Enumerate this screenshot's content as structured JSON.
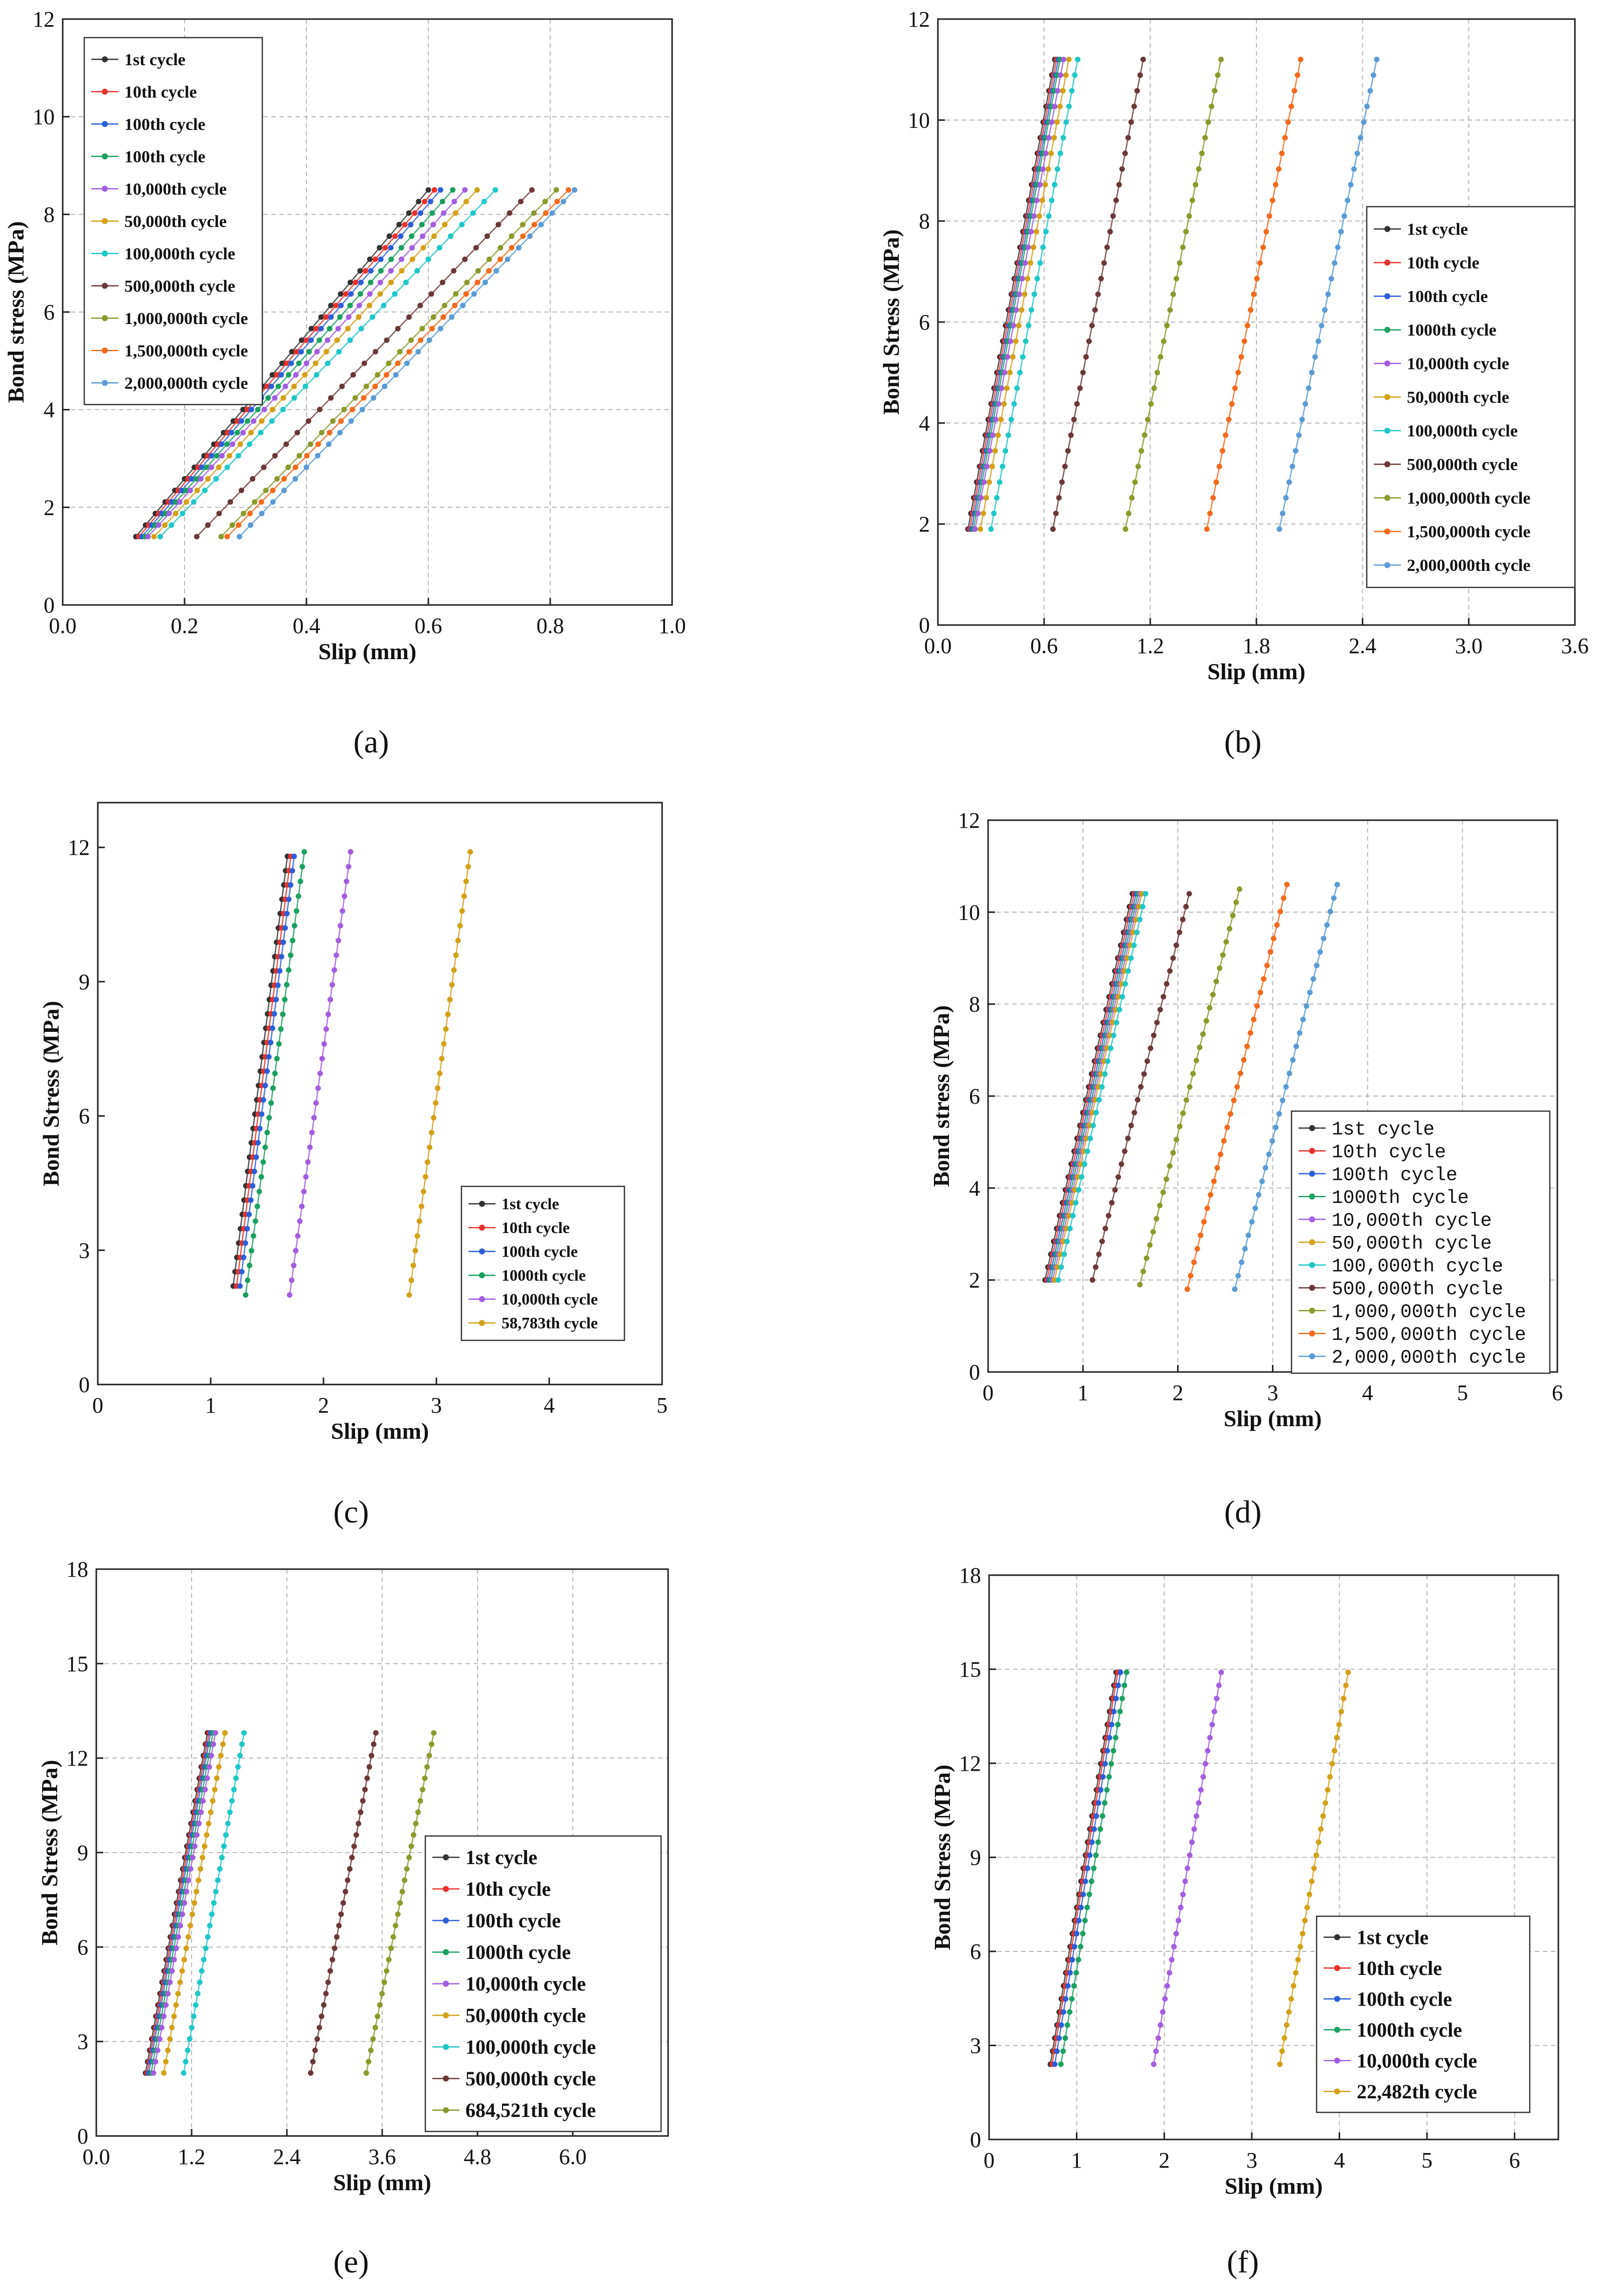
{
  "figure": {
    "panel_labels": [
      "(a)",
      "(b)",
      "(c)",
      "(d)",
      "(e)",
      "(f)"
    ]
  },
  "chart_data": [
    {
      "id": "a",
      "type": "line",
      "panel_label": "(a)",
      "xlabel": "Slip (mm)",
      "ylabel": "Bond stress (MPa)",
      "xlim": [
        0,
        1.0
      ],
      "ylim": [
        0,
        12
      ],
      "xticks": [
        "0.0",
        "0.2",
        "0.4",
        "0.6",
        "0.8",
        "1.0"
      ],
      "yticks": [
        "0",
        "2",
        "4",
        "6",
        "8",
        "10",
        "12"
      ],
      "grid": true,
      "legend_position": "top-left",
      "series": [
        {
          "name": "1st cycle",
          "color": "#333333",
          "x": [
            0.12,
            0.6
          ],
          "y": [
            1.4,
            8.5
          ]
        },
        {
          "name": "10th cycle",
          "color": "#e8312a",
          "x": [
            0.125,
            0.61
          ],
          "y": [
            1.4,
            8.5
          ]
        },
        {
          "name": "100th cycle",
          "color": "#2b5fd9",
          "x": [
            0.13,
            0.62
          ],
          "y": [
            1.4,
            8.5
          ]
        },
        {
          "name": "100th cycle",
          "color": "#1aa060",
          "x": [
            0.135,
            0.64
          ],
          "y": [
            1.4,
            8.5
          ]
        },
        {
          "name": "10,000th cycle",
          "color": "#a25de0",
          "x": [
            0.14,
            0.66
          ],
          "y": [
            1.4,
            8.5
          ]
        },
        {
          "name": "50,000th cycle",
          "color": "#d4a017",
          "x": [
            0.15,
            0.68
          ],
          "y": [
            1.4,
            8.5
          ]
        },
        {
          "name": "100,000th cycle",
          "color": "#1fc7c7",
          "x": [
            0.16,
            0.71
          ],
          "y": [
            1.4,
            8.5
          ]
        },
        {
          "name": "500,000th cycle",
          "color": "#6b3838",
          "x": [
            0.22,
            0.77
          ],
          "y": [
            1.4,
            8.5
          ]
        },
        {
          "name": "1,000,000th cycle",
          "color": "#8b9a2a",
          "x": [
            0.26,
            0.81
          ],
          "y": [
            1.4,
            8.5
          ]
        },
        {
          "name": "1,500,000th cycle",
          "color": "#f26a1b",
          "x": [
            0.27,
            0.83
          ],
          "y": [
            1.4,
            8.5
          ]
        },
        {
          "name": "2,000,000th cycle",
          "color": "#5b9bd5",
          "x": [
            0.29,
            0.84
          ],
          "y": [
            1.4,
            8.5
          ]
        }
      ]
    },
    {
      "id": "b",
      "type": "line",
      "panel_label": "(b)",
      "xlabel": "Slip (mm)",
      "ylabel": "Bond Stress (MPa)",
      "xlim": [
        0,
        3.6
      ],
      "ylim": [
        0,
        12
      ],
      "xticks": [
        "0.0",
        "0.6",
        "1.2",
        "1.8",
        "2.4",
        "3.0",
        "3.6"
      ],
      "yticks": [
        "0",
        "2",
        "4",
        "6",
        "8",
        "10",
        "12"
      ],
      "grid": true,
      "legend_position": "middle-right",
      "series": [
        {
          "name": "1st cycle",
          "color": "#333333",
          "x": [
            0.17,
            0.66
          ],
          "y": [
            1.9,
            11.2
          ]
        },
        {
          "name": "10th cycle",
          "color": "#e8312a",
          "x": [
            0.18,
            0.67
          ],
          "y": [
            1.9,
            11.2
          ]
        },
        {
          "name": "100th cycle",
          "color": "#2b5fd9",
          "x": [
            0.19,
            0.68
          ],
          "y": [
            1.9,
            11.2
          ]
        },
        {
          "name": "1000th cycle",
          "color": "#1aa060",
          "x": [
            0.2,
            0.69
          ],
          "y": [
            1.9,
            11.2
          ]
        },
        {
          "name": "10,000th cycle",
          "color": "#a25de0",
          "x": [
            0.21,
            0.71
          ],
          "y": [
            1.9,
            11.2
          ]
        },
        {
          "name": "50,000th cycle",
          "color": "#d4a017",
          "x": [
            0.24,
            0.74
          ],
          "y": [
            1.9,
            11.2
          ]
        },
        {
          "name": "100,000th cycle",
          "color": "#1fc7c7",
          "x": [
            0.3,
            0.79
          ],
          "y": [
            1.9,
            11.2
          ]
        },
        {
          "name": "500,000th cycle",
          "color": "#6b3838",
          "x": [
            0.65,
            1.16
          ],
          "y": [
            1.9,
            11.2
          ]
        },
        {
          "name": "1,000,000th cycle",
          "color": "#8b9a2a",
          "x": [
            1.06,
            1.6
          ],
          "y": [
            1.9,
            11.2
          ]
        },
        {
          "name": "1,500,000th cycle",
          "color": "#f26a1b",
          "x": [
            1.52,
            2.05
          ],
          "y": [
            1.9,
            11.2
          ]
        },
        {
          "name": "2,000,000th cycle",
          "color": "#5b9bd5",
          "x": [
            1.93,
            2.48
          ],
          "y": [
            1.9,
            11.2
          ]
        }
      ]
    },
    {
      "id": "c",
      "type": "line",
      "panel_label": "(c)",
      "xlabel": "Slip (mm)",
      "ylabel": "Bond Stress (MPa)",
      "xlim": [
        0,
        5
      ],
      "ylim": [
        0,
        13
      ],
      "xticks": [
        "0",
        "1",
        "2",
        "3",
        "4",
        "5"
      ],
      "yticks": [
        "0",
        "3",
        "6",
        "9",
        "12"
      ],
      "ytick_values": [
        0,
        3,
        6,
        9,
        12
      ],
      "grid": false,
      "legend_position": "bottom-right",
      "series": [
        {
          "name": "1st cycle",
          "color": "#333333",
          "x": [
            1.2,
            1.68
          ],
          "y": [
            2.2,
            11.8
          ]
        },
        {
          "name": "10th cycle",
          "color": "#e8312a",
          "x": [
            1.23,
            1.71
          ],
          "y": [
            2.2,
            11.8
          ]
        },
        {
          "name": "100th cycle",
          "color": "#2b5fd9",
          "x": [
            1.26,
            1.74
          ],
          "y": [
            2.2,
            11.8
          ]
        },
        {
          "name": "1000th cycle",
          "color": "#1aa060",
          "x": [
            1.31,
            1.83
          ],
          "y": [
            2.0,
            11.9
          ]
        },
        {
          "name": "10,000th cycle",
          "color": "#a25de0",
          "x": [
            1.7,
            2.24
          ],
          "y": [
            2.0,
            11.9
          ]
        },
        {
          "name": "58,783th cycle",
          "color": "#d4a017",
          "x": [
            2.76,
            3.3
          ],
          "y": [
            2.0,
            11.9
          ]
        }
      ]
    },
    {
      "id": "d",
      "type": "line",
      "panel_label": "(d)",
      "xlabel": "Slip (mm)",
      "ylabel": "Bond stress (MPa)",
      "xlim": [
        0,
        6
      ],
      "ylim": [
        0,
        12
      ],
      "xticks": [
        "0",
        "1",
        "2",
        "3",
        "4",
        "5",
        "6"
      ],
      "yticks": [
        "0",
        "2",
        "4",
        "6",
        "8",
        "10",
        "12"
      ],
      "grid": true,
      "legend_position": "bottom-right",
      "series": [
        {
          "name": "1st cycle",
          "color": "#333333",
          "x": [
            0.6,
            1.52
          ],
          "y": [
            2.0,
            10.4
          ]
        },
        {
          "name": "10th cycle",
          "color": "#e8312a",
          "x": [
            0.62,
            1.54
          ],
          "y": [
            2.0,
            10.4
          ]
        },
        {
          "name": "100th cycle",
          "color": "#2b5fd9",
          "x": [
            0.64,
            1.56
          ],
          "y": [
            2.0,
            10.4
          ]
        },
        {
          "name": "1000th cycle",
          "color": "#1aa060",
          "x": [
            0.66,
            1.58
          ],
          "y": [
            2.0,
            10.4
          ]
        },
        {
          "name": "10,000th cycle",
          "color": "#a25de0",
          "x": [
            0.68,
            1.6
          ],
          "y": [
            2.0,
            10.4
          ]
        },
        {
          "name": "50,000th cycle",
          "color": "#d4a017",
          "x": [
            0.7,
            1.62
          ],
          "y": [
            2.0,
            10.4
          ]
        },
        {
          "name": "100,000th cycle",
          "color": "#1fc7c7",
          "x": [
            0.74,
            1.66
          ],
          "y": [
            2.0,
            10.4
          ]
        },
        {
          "name": "500,000th cycle",
          "color": "#6b3838",
          "x": [
            1.1,
            2.12
          ],
          "y": [
            2.0,
            10.4
          ]
        },
        {
          "name": "1,000,000th cycle",
          "color": "#8b9a2a",
          "x": [
            1.6,
            2.65
          ],
          "y": [
            1.9,
            10.5
          ]
        },
        {
          "name": "1,500,000th cycle",
          "color": "#f26a1b",
          "x": [
            2.1,
            3.15
          ],
          "y": [
            1.8,
            10.6
          ]
        },
        {
          "name": "2,000,000th cycle",
          "color": "#5b9bd5",
          "x": [
            2.6,
            3.68
          ],
          "y": [
            1.8,
            10.6
          ]
        }
      ]
    },
    {
      "id": "e",
      "type": "line",
      "panel_label": "(e)",
      "xlabel": "Slip (mm)",
      "ylabel": "Bond Stress (MPa)",
      "xlim": [
        0,
        7.2
      ],
      "ylim": [
        0,
        18
      ],
      "xticks": [
        "0.0",
        "1.2",
        "2.4",
        "3.6",
        "4.8",
        "6.0"
      ],
      "xtick_values": [
        0,
        1.2,
        2.4,
        3.6,
        4.8,
        6.0
      ],
      "yticks": [
        "0",
        "3",
        "6",
        "9",
        "12",
        "15",
        "18"
      ],
      "grid": true,
      "legend_position": "bottom-right",
      "series": [
        {
          "name": "1st cycle",
          "color": "#333333",
          "x": [
            0.62,
            1.4
          ],
          "y": [
            2.0,
            12.8
          ]
        },
        {
          "name": "10th cycle",
          "color": "#e8312a",
          "x": [
            0.64,
            1.42
          ],
          "y": [
            2.0,
            12.8
          ]
        },
        {
          "name": "100th cycle",
          "color": "#2b5fd9",
          "x": [
            0.66,
            1.44
          ],
          "y": [
            2.0,
            12.8
          ]
        },
        {
          "name": "1000th cycle",
          "color": "#1aa060",
          "x": [
            0.69,
            1.47
          ],
          "y": [
            2.0,
            12.8
          ]
        },
        {
          "name": "10,000th cycle",
          "color": "#a25de0",
          "x": [
            0.72,
            1.5
          ],
          "y": [
            2.0,
            12.8
          ]
        },
        {
          "name": "50,000th cycle",
          "color": "#d4a017",
          "x": [
            0.85,
            1.62
          ],
          "y": [
            2.0,
            12.8
          ]
        },
        {
          "name": "100,000th cycle",
          "color": "#1fc7c7",
          "x": [
            1.1,
            1.86
          ],
          "y": [
            2.0,
            12.8
          ]
        },
        {
          "name": "500,000th cycle",
          "color": "#6b3838",
          "x": [
            2.7,
            3.52
          ],
          "y": [
            2.0,
            12.8
          ]
        },
        {
          "name": "684,521th cycle",
          "color": "#8b9a2a",
          "x": [
            3.4,
            4.25
          ],
          "y": [
            2.0,
            12.8
          ]
        }
      ]
    },
    {
      "id": "f",
      "type": "line",
      "panel_label": "(f)",
      "xlabel": "Slip (mm)",
      "ylabel": "Bond Stress (MPa)",
      "xlim": [
        0,
        6.5
      ],
      "ylim": [
        0,
        18
      ],
      "xticks": [
        "0",
        "1",
        "2",
        "3",
        "4",
        "5",
        "6"
      ],
      "xtick_values": [
        0,
        1,
        2,
        3,
        4,
        5,
        6
      ],
      "yticks": [
        "0",
        "3",
        "6",
        "9",
        "12",
        "15",
        "18"
      ],
      "grid": true,
      "legend_position": "bottom-right",
      "series": [
        {
          "name": "1st cycle",
          "color": "#333333",
          "x": [
            0.7,
            1.45
          ],
          "y": [
            2.4,
            14.9
          ]
        },
        {
          "name": "10th cycle",
          "color": "#e8312a",
          "x": [
            0.72,
            1.47
          ],
          "y": [
            2.4,
            14.9
          ]
        },
        {
          "name": "100th cycle",
          "color": "#2b5fd9",
          "x": [
            0.75,
            1.5
          ],
          "y": [
            2.4,
            14.9
          ]
        },
        {
          "name": "1000th cycle",
          "color": "#1aa060",
          "x": [
            0.82,
            1.57
          ],
          "y": [
            2.4,
            14.9
          ]
        },
        {
          "name": "10,000th cycle",
          "color": "#a25de0",
          "x": [
            1.88,
            2.65
          ],
          "y": [
            2.4,
            14.9
          ]
        },
        {
          "name": "22,482th cycle",
          "color": "#d4a017",
          "x": [
            3.32,
            4.1
          ],
          "y": [
            2.4,
            14.9
          ]
        }
      ]
    }
  ]
}
